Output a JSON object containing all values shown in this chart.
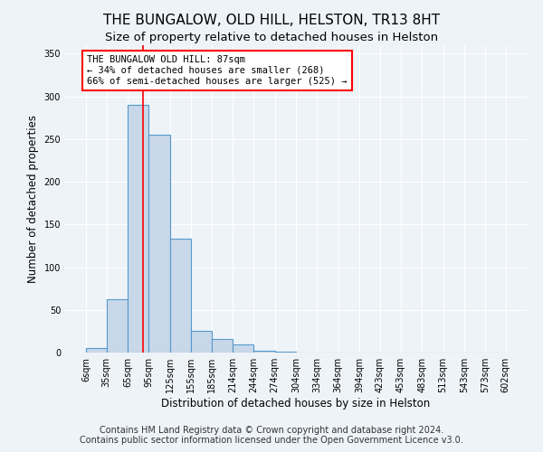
{
  "title": "THE BUNGALOW, OLD HILL, HELSTON, TR13 8HT",
  "subtitle": "Size of property relative to detached houses in Helston",
  "xlabel": "Distribution of detached houses by size in Helston",
  "ylabel": "Number of detached properties",
  "bin_edges": [
    6,
    35,
    65,
    95,
    125,
    155,
    185,
    214,
    244,
    274,
    304,
    334,
    364,
    394,
    423,
    453,
    483,
    513,
    543,
    573,
    602
  ],
  "bar_heights": [
    5,
    63,
    290,
    255,
    133,
    25,
    16,
    10,
    2,
    1,
    0,
    0,
    0,
    0,
    0,
    0,
    0,
    0,
    0,
    0
  ],
  "bar_color": "#c8d8e8",
  "bar_edge_color": "#5599cc",
  "bar_edge_width": 0.8,
  "red_line_x": 87,
  "annotation_line1": "THE BUNGALOW OLD HILL: 87sqm",
  "annotation_line2": "← 34% of detached houses are smaller (268)",
  "annotation_line3": "66% of semi-detached houses are larger (525) →",
  "annotation_box_color": "white",
  "annotation_box_edge": "red",
  "ylim": [
    0,
    360
  ],
  "yticks": [
    0,
    50,
    100,
    150,
    200,
    250,
    300,
    350
  ],
  "footer_line1": "Contains HM Land Registry data © Crown copyright and database right 2024.",
  "footer_line2": "Contains public sector information licensed under the Open Government Licence v3.0.",
  "background_color": "#eef3f8",
  "plot_background": "#eef3f8",
  "grid_color": "white",
  "title_fontsize": 11,
  "subtitle_fontsize": 9.5,
  "axis_label_fontsize": 8.5,
  "tick_fontsize": 7,
  "annotation_fontsize": 7.5,
  "footer_fontsize": 7
}
